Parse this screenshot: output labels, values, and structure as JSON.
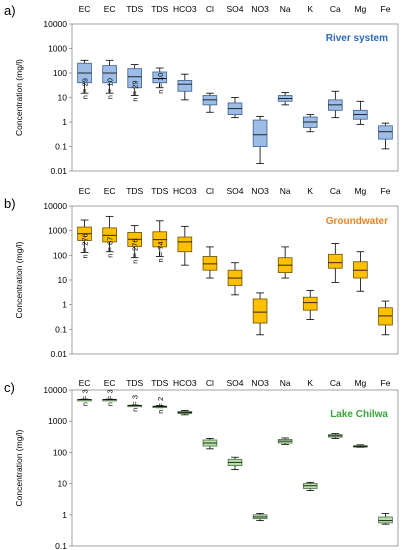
{
  "figure": {
    "panels": [
      {
        "letter": "a)"
      },
      {
        "letter": "b)"
      },
      {
        "letter": "c)"
      }
    ]
  },
  "chart_data": [
    {
      "type": "box",
      "title": "River system",
      "title_color": "#2e6bb5",
      "box_fill": "#9dbde6",
      "box_stroke": "#3a5f8e",
      "ylabel": "Concentration (mg/l)",
      "yscale": "log",
      "ylim": [
        0.01,
        10000
      ],
      "yticks": [
        "0.01",
        "0.1",
        "1",
        "10",
        "100",
        "1000",
        "10000"
      ],
      "grid": false,
      "categories": [
        "EC",
        "EC",
        "TDS",
        "TDS",
        "HCO3",
        "Cl",
        "SO4",
        "NO3",
        "Na",
        "K",
        "Ca",
        "Mg",
        "Fe"
      ],
      "n_labels": [
        "n = 29",
        "n = 10",
        "n = 29",
        "n = 10",
        "",
        "",
        "",
        "",
        "",
        "",
        "",
        "",
        ""
      ],
      "boxes": [
        {
          "min": 15,
          "q1": 40,
          "median": 100,
          "q3": 250,
          "max": 330
        },
        {
          "min": 15,
          "q1": 40,
          "median": 100,
          "q3": 200,
          "max": 330
        },
        {
          "min": 12,
          "q1": 25,
          "median": 70,
          "q3": 150,
          "max": 220
        },
        {
          "min": 25,
          "q1": 40,
          "median": 60,
          "q3": 110,
          "max": 160
        },
        {
          "min": 8,
          "q1": 18,
          "median": 35,
          "q3": 50,
          "max": 90
        },
        {
          "min": 2.5,
          "q1": 5,
          "median": 8,
          "q3": 12,
          "max": 15
        },
        {
          "min": 1.5,
          "q1": 2,
          "median": 3.5,
          "q3": 6,
          "max": 10
        },
        {
          "min": 0.02,
          "q1": 0.1,
          "median": 0.3,
          "q3": 1.2,
          "max": 1.7
        },
        {
          "min": 5,
          "q1": 7,
          "median": 9,
          "q3": 12,
          "max": 16
        },
        {
          "min": 0.4,
          "q1": 0.6,
          "median": 1,
          "q3": 1.6,
          "max": 2
        },
        {
          "min": 1.5,
          "q1": 3,
          "median": 5,
          "q3": 8,
          "max": 18
        },
        {
          "min": 0.8,
          "q1": 1.3,
          "median": 2,
          "q3": 3,
          "max": 7
        },
        {
          "min": 0.08,
          "q1": 0.2,
          "median": 0.4,
          "q3": 0.7,
          "max": 0.9
        }
      ]
    },
    {
      "type": "box",
      "title": "Groundwater",
      "title_color": "#f0821e",
      "box_fill": "#ffc000",
      "box_stroke": "#6b5200",
      "ylabel": "Concentration (mg/l)",
      "yscale": "log",
      "ylim": [
        0.01,
        10000
      ],
      "yticks": [
        "0.01",
        "0.1",
        "1",
        "10",
        "100",
        "1000",
        "10000"
      ],
      "grid": false,
      "categories": [
        "EC",
        "EC",
        "TDS",
        "TDS",
        "HCO3",
        "Cl",
        "SO4",
        "NO3",
        "Na",
        "K",
        "Ca",
        "Mg",
        "Fe"
      ],
      "n_labels": [
        "n = 276",
        "n = 67",
        "n = 276",
        "n = 74",
        "",
        "",
        "",
        "",
        "",
        "",
        "",
        "",
        ""
      ],
      "boxes": [
        {
          "min": 130,
          "q1": 400,
          "median": 750,
          "q3": 1400,
          "max": 2700
        },
        {
          "min": 140,
          "q1": 350,
          "median": 650,
          "q3": 1300,
          "max": 3800
        },
        {
          "min": 80,
          "q1": 230,
          "median": 450,
          "q3": 850,
          "max": 1600
        },
        {
          "min": 90,
          "q1": 220,
          "median": 430,
          "q3": 900,
          "max": 2500
        },
        {
          "min": 40,
          "q1": 140,
          "median": 350,
          "q3": 550,
          "max": 1500
        },
        {
          "min": 12,
          "q1": 25,
          "median": 45,
          "q3": 90,
          "max": 220
        },
        {
          "min": 2.5,
          "q1": 6,
          "median": 12,
          "q3": 25,
          "max": 50
        },
        {
          "min": 0.06,
          "q1": 0.18,
          "median": 0.5,
          "q3": 1.7,
          "max": 3
        },
        {
          "min": 12,
          "q1": 20,
          "median": 40,
          "q3": 80,
          "max": 220
        },
        {
          "min": 0.25,
          "q1": 0.6,
          "median": 1.2,
          "q3": 2,
          "max": 3.8
        },
        {
          "min": 8,
          "q1": 30,
          "median": 50,
          "q3": 110,
          "max": 300
        },
        {
          "min": 3.5,
          "q1": 12,
          "median": 25,
          "q3": 55,
          "max": 140
        },
        {
          "min": 0.06,
          "q1": 0.15,
          "median": 0.35,
          "q3": 0.75,
          "max": 1.4
        }
      ]
    },
    {
      "type": "box",
      "title": "Lake Chilwa",
      "title_color": "#3aa53a",
      "box_fill": "#b6e2a8",
      "box_stroke": "#4c6e44",
      "ylabel": "Concentration (mg/l)",
      "yscale": "log",
      "ylim": [
        0.1,
        10000
      ],
      "yticks": [
        "0.1",
        "1",
        "10",
        "100",
        "1000",
        "10000"
      ],
      "grid": false,
      "categories": [
        "EC",
        "EC",
        "TDS",
        "TDS",
        "HCO3",
        "Cl",
        "SO4",
        "NO3",
        "Na",
        "K",
        "Ca",
        "Mg",
        "Fe"
      ],
      "n_labels": [
        "n = 3",
        "n = 3",
        "n = 3",
        "n = 2",
        "",
        "",
        "",
        "",
        "",
        "",
        "",
        "",
        ""
      ],
      "boxes": [
        {
          "min": 4700,
          "q1": 4800,
          "median": 4900,
          "q3": 5000,
          "max": 5100
        },
        {
          "min": 4700,
          "q1": 4800,
          "median": 4900,
          "q3": 5000,
          "max": 5100
        },
        {
          "min": 3100,
          "q1": 3150,
          "median": 3200,
          "q3": 3250,
          "max": 3300
        },
        {
          "min": 2700,
          "q1": 2850,
          "median": 2950,
          "q3": 3050,
          "max": 3200
        },
        {
          "min": 1600,
          "q1": 1750,
          "median": 1900,
          "q3": 2050,
          "max": 2200
        },
        {
          "min": 130,
          "q1": 160,
          "median": 200,
          "q3": 250,
          "max": 280
        },
        {
          "min": 28,
          "q1": 38,
          "median": 48,
          "q3": 60,
          "max": 70
        },
        {
          "min": 0.65,
          "q1": 0.75,
          "median": 0.85,
          "q3": 1,
          "max": 1.1
        },
        {
          "min": 180,
          "q1": 200,
          "median": 230,
          "q3": 260,
          "max": 290
        },
        {
          "min": 6,
          "q1": 7,
          "median": 8.5,
          "q3": 10,
          "max": 11
        },
        {
          "min": 280,
          "q1": 310,
          "median": 340,
          "q3": 370,
          "max": 400
        },
        {
          "min": 145,
          "q1": 150,
          "median": 155,
          "q3": 165,
          "max": 175
        },
        {
          "min": 0.5,
          "q1": 0.55,
          "median": 0.65,
          "q3": 0.85,
          "max": 1.1
        }
      ]
    }
  ]
}
